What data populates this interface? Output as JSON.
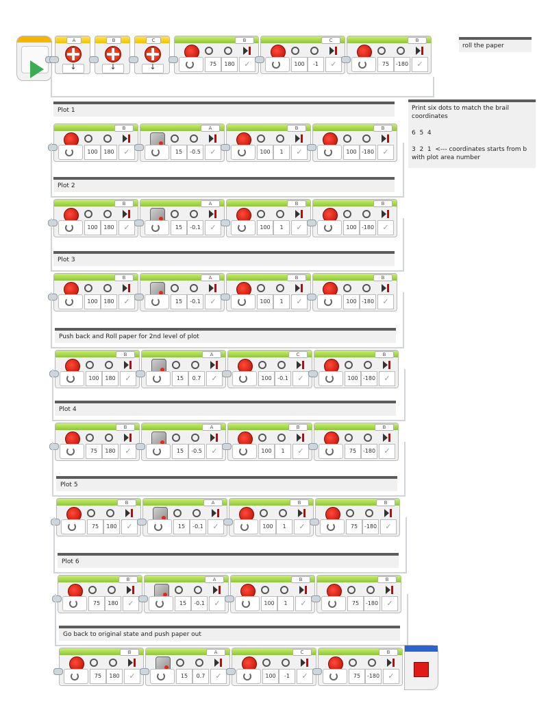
{
  "program": {
    "header_blocks": [
      {
        "kind": "reset",
        "port": "A"
      },
      {
        "kind": "reset",
        "port": "B"
      },
      {
        "kind": "reset",
        "port": "C"
      },
      {
        "kind": "medium",
        "port": "B",
        "mode": "90°",
        "v1": "75",
        "v2": "180"
      },
      {
        "kind": "medium",
        "port": "C",
        "mode": "#",
        "v1": "100",
        "v2": "-1"
      },
      {
        "kind": "medium",
        "port": "B",
        "mode": "90°",
        "v1": "75",
        "v2": "-180"
      }
    ],
    "rows": [
      {
        "label": "Plot 1",
        "blocks": [
          {
            "kind": "medium",
            "port": "B",
            "mode": "90°",
            "v1": "100",
            "v2": "180"
          },
          {
            "kind": "large",
            "port": "A",
            "mode": "#",
            "v1": "15",
            "v2": "-0.5"
          },
          {
            "kind": "medium",
            "port": "B",
            "mode": "#",
            "v1": "100",
            "v2": "1"
          },
          {
            "kind": "medium",
            "port": "B",
            "mode": "90°",
            "v1": "100",
            "v2": "-180"
          }
        ]
      },
      {
        "label": "Plot 2",
        "blocks": [
          {
            "kind": "medium",
            "port": "B",
            "mode": "90°",
            "v1": "100",
            "v2": "180"
          },
          {
            "kind": "large",
            "port": "A",
            "mode": "#",
            "v1": "15",
            "v2": "-0.1"
          },
          {
            "kind": "medium",
            "port": "B",
            "mode": "#",
            "v1": "100",
            "v2": "1"
          },
          {
            "kind": "medium",
            "port": "B",
            "mode": "90°",
            "v1": "100",
            "v2": "-180"
          }
        ]
      },
      {
        "label": "Plot 3",
        "blocks": [
          {
            "kind": "medium",
            "port": "B",
            "mode": "90°",
            "v1": "100",
            "v2": "180"
          },
          {
            "kind": "large",
            "port": "A",
            "mode": "#",
            "v1": "15",
            "v2": "-0.1"
          },
          {
            "kind": "medium",
            "port": "B",
            "mode": "#",
            "v1": "100",
            "v2": "1"
          },
          {
            "kind": "medium",
            "port": "B",
            "mode": "90°",
            "v1": "100",
            "v2": "-180"
          }
        ]
      },
      {
        "label": "Push back and Roll paper for 2nd level of plot",
        "blocks": [
          {
            "kind": "medium",
            "port": "B",
            "mode": "90°",
            "v1": "100",
            "v2": "180"
          },
          {
            "kind": "large",
            "port": "A",
            "mode": "#",
            "v1": "15",
            "v2": "0.7"
          },
          {
            "kind": "medium",
            "port": "C",
            "mode": "#",
            "v1": "100",
            "v2": "-0.1"
          },
          {
            "kind": "medium",
            "port": "B",
            "mode": "90°",
            "v1": "100",
            "v2": "-180"
          }
        ]
      },
      {
        "label": "Plot 4",
        "blocks": [
          {
            "kind": "medium",
            "port": "B",
            "mode": "90°",
            "v1": "75",
            "v2": "180"
          },
          {
            "kind": "large",
            "port": "A",
            "mode": "#",
            "v1": "15",
            "v2": "-0.5"
          },
          {
            "kind": "medium",
            "port": "B",
            "mode": "#",
            "v1": "100",
            "v2": "1"
          },
          {
            "kind": "medium",
            "port": "B",
            "mode": "90°",
            "v1": "75",
            "v2": "-180"
          }
        ]
      },
      {
        "label": "Plot 5",
        "blocks": [
          {
            "kind": "medium",
            "port": "B",
            "mode": "90°",
            "v1": "75",
            "v2": "180"
          },
          {
            "kind": "large",
            "port": "A",
            "mode": "#",
            "v1": "15",
            "v2": "-0.1"
          },
          {
            "kind": "medium",
            "port": "B",
            "mode": "#",
            "v1": "100",
            "v2": "1"
          },
          {
            "kind": "medium",
            "port": "B",
            "mode": "90°",
            "v1": "75",
            "v2": "-180"
          }
        ]
      },
      {
        "label": "Plot 6",
        "blocks": [
          {
            "kind": "medium",
            "port": "B",
            "mode": "90°",
            "v1": "75",
            "v2": "180"
          },
          {
            "kind": "large",
            "port": "A",
            "mode": "#",
            "v1": "15",
            "v2": "-0.1"
          },
          {
            "kind": "medium",
            "port": "B",
            "mode": "#",
            "v1": "100",
            "v2": "1"
          },
          {
            "kind": "medium",
            "port": "B",
            "mode": "90°",
            "v1": "75",
            "v2": "-180"
          }
        ]
      },
      {
        "label": "Go back to original state and push paper out",
        "blocks": [
          {
            "kind": "medium",
            "port": "B",
            "mode": "90°",
            "v1": "75",
            "v2": "180"
          },
          {
            "kind": "large",
            "port": "A",
            "mode": "#",
            "v1": "15",
            "v2": "0.7"
          },
          {
            "kind": "medium",
            "port": "C",
            "mode": "#",
            "v1": "100",
            "v2": "-1"
          },
          {
            "kind": "medium",
            "port": "B",
            "mode": "90°",
            "v1": "75",
            "v2": "-180"
          }
        ]
      }
    ]
  },
  "notes": {
    "roll": "roll the paper",
    "braille": "Print six dots to match the brail\ncoordinates\n\n6  5  4\n\n3  2  1  <--- coordinates starts from b\nwith plot area number"
  },
  "colors": {
    "start_bar": "#f5b400",
    "motor_bar": "#8fc53b",
    "stop_bar": "#2a64cc",
    "play": "#3daa55",
    "stop_square": "#e01a1a"
  }
}
